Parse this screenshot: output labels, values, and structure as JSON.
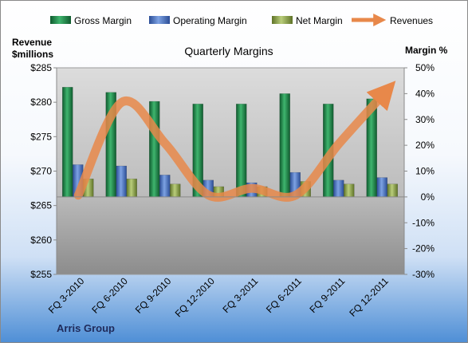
{
  "company": "Arris Group",
  "chart_data": {
    "type": "bar",
    "title": "Quarterly Margins",
    "categories": [
      "FQ 3-2010",
      "FQ 6-2010",
      "FQ 9-2010",
      "FQ 12-2010",
      "FQ 3-2011",
      "FQ 6-2011",
      "FQ 9-2011",
      "FQ 12-2011"
    ],
    "ylabel_left": [
      "Revenue",
      "$millions"
    ],
    "ylabel_right": "Margin %",
    "left_axis": {
      "min": 255,
      "max": 285,
      "ticks": [
        255,
        260,
        265,
        270,
        275,
        280,
        285
      ],
      "tick_labels": [
        "$255",
        "$260",
        "$265",
        "$270",
        "$275",
        "$280",
        "$285"
      ]
    },
    "right_axis": {
      "min": -30,
      "max": 50,
      "ticks": [
        -30,
        -20,
        -10,
        0,
        10,
        20,
        30,
        40,
        50
      ],
      "tick_labels": [
        "-30%",
        "-20%",
        "-10%",
        "0%",
        "10%",
        "20%",
        "30%",
        "40%",
        "50%"
      ]
    },
    "grid": false,
    "legend_position": "top",
    "series": [
      {
        "name": "Gross Margin",
        "kind": "bar",
        "axis": "right",
        "color": "#1f8a4c",
        "values": [
          42.5,
          40.5,
          37,
          36,
          36,
          40,
          36,
          38
        ]
      },
      {
        "name": "Operating Margin",
        "kind": "bar",
        "axis": "right",
        "color": "#4a72c4",
        "values": [
          12.5,
          12,
          8.5,
          6.5,
          5.5,
          9.5,
          6.5,
          7.5
        ]
      },
      {
        "name": "Net Margin",
        "kind": "bar",
        "axis": "right",
        "color": "#8fa84a",
        "values": [
          7,
          7,
          5,
          4,
          4,
          6,
          5,
          5
        ]
      },
      {
        "name": "Revenues",
        "kind": "line",
        "axis": "left",
        "color": "#e8884a",
        "values": [
          266.5,
          280,
          274,
          266.5,
          267.5,
          266.5,
          274,
          281
        ]
      }
    ]
  }
}
